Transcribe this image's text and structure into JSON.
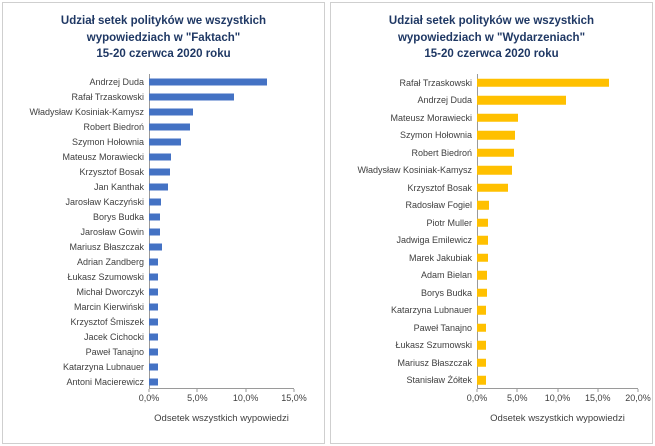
{
  "chart_data": [
    {
      "type": "bar",
      "orientation": "horizontal",
      "title": "Udział setek polityków we wszystkich wypowiedziach w \"Faktach\" 15-20 czerwca 2020 roku",
      "title_lines": [
        "Udział setek polityków we wszystkich",
        "wypowiedziach w \"Faktach\"",
        "15-20 czerwca 2020 roku"
      ],
      "xlabel": "Odsetek wszystkich wypowiedzi",
      "xlim": [
        0,
        15
      ],
      "tick_labels": [
        "0,0%",
        "5,0%",
        "10,0%",
        "15,0%"
      ],
      "grid": false,
      "legend": false,
      "bar_color": "#4472C4",
      "title_color": "#1F3864",
      "categories": [
        "Andrzej Duda",
        "Rafał Trzaskowski",
        "Władysław Kosiniak-Kamysz",
        "Robert Biedroń",
        "Szymon Hołownia",
        "Mateusz Morawiecki",
        "Krzysztof Bosak",
        "Jan Kanthak",
        "Jarosław Kaczyński",
        "Borys Budka",
        "Jarosław Gowin",
        "Mariusz Błaszczak",
        "Adrian Zandberg",
        "Łukasz Szumowski",
        "Michał Dworczyk",
        "Marcin Kierwiński",
        "Krzysztof Śmiszek",
        "Jacek Cichocki",
        "Paweł Tanajno",
        "Katarzyna Lubnauer",
        "Antoni Macierewicz"
      ],
      "values": [
        12.2,
        8.8,
        4.5,
        4.2,
        3.3,
        2.3,
        2.2,
        2.0,
        1.2,
        1.1,
        1.1,
        1.3,
        0.9,
        0.9,
        0.9,
        0.9,
        0.9,
        0.9,
        0.9,
        0.9,
        0.9
      ]
    },
    {
      "type": "bar",
      "orientation": "horizontal",
      "title": "Udział setek polityków we wszystkich wypowiedziach w \"Wydarzeniach\" 15-20 czerwca 2020 roku",
      "title_lines": [
        "Udział setek polityków we wszystkich",
        "wypowiedziach w \"Wydarzeniach\"",
        "15-20 czerwca 2020 roku"
      ],
      "xlabel": "Odsetek wszystkich wypowiedzi",
      "xlim": [
        0,
        20
      ],
      "tick_labels": [
        "0,0%",
        "5,0%",
        "10,0%",
        "15,0%",
        "20,0%"
      ],
      "grid": false,
      "legend": false,
      "bar_color": "#FFC000",
      "title_color": "#1F3864",
      "categories": [
        "Rafał Trzaskowski",
        "Andrzej Duda",
        "Mateusz Morawiecki",
        "Szymon Hołownia",
        "Robert Biedroń",
        "Władysław Kosiniak-Kamysz",
        "Krzysztof Bosak",
        "Radosław Fogiel",
        "Piotr Muller",
        "Jadwiga Emilewicz",
        "Marek Jakubiak",
        "Adam Bielan",
        "Borys Budka",
        "Katarzyna Lubnauer",
        "Paweł Tanajno",
        "Łukasz Szumowski",
        "Mariusz Błaszczak",
        "Stanisław Żółtek"
      ],
      "values": [
        16.4,
        11.0,
        5.1,
        4.7,
        4.6,
        4.4,
        3.9,
        1.5,
        1.4,
        1.4,
        1.4,
        1.3,
        1.3,
        1.1,
        1.1,
        1.1,
        1.1,
        1.1
      ]
    }
  ]
}
